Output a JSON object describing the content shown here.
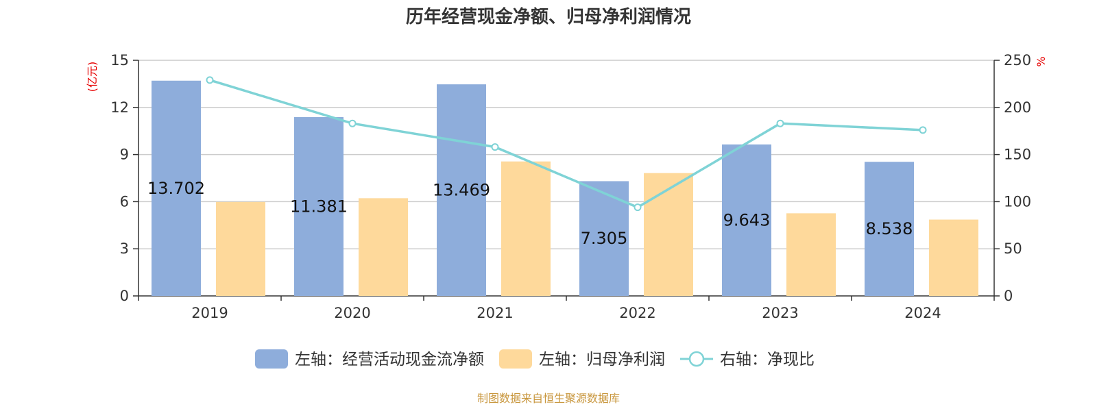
{
  "title": "历年经营现金净额、归母净利润情况",
  "source": "制图数据来自恒生聚源数据库",
  "colors": {
    "bar_cash": "#8eaddb",
    "bar_profit": "#fed99b",
    "line": "#7fd3d6",
    "unit_text": "#e60000",
    "source_text": "#c8963c"
  },
  "chart_data": {
    "type": "bar",
    "categories": [
      "2019",
      "2020",
      "2021",
      "2022",
      "2023",
      "2024"
    ],
    "left_axis": {
      "unit": "(亿元)",
      "ylim": [
        0,
        15
      ],
      "ticks": [
        0,
        3,
        6,
        9,
        12,
        15
      ]
    },
    "right_axis": {
      "unit": "%",
      "ylim": [
        0,
        250
      ],
      "ticks": [
        0,
        50,
        100,
        150,
        200,
        250
      ]
    },
    "series": [
      {
        "name": "左轴：经营活动现金流净额",
        "type": "bar",
        "axis": "left",
        "values": [
          13.702,
          11.381,
          13.469,
          7.305,
          9.643,
          8.538
        ],
        "labels": [
          "13.702",
          "11.381",
          "13.469",
          "7.305",
          "9.643",
          "8.538"
        ]
      },
      {
        "name": "左轴：归母净利润",
        "type": "bar",
        "axis": "left",
        "values": [
          5.98,
          6.22,
          8.56,
          7.82,
          5.26,
          4.86
        ]
      },
      {
        "name": "右轴：净现比",
        "type": "line",
        "axis": "right",
        "values": [
          229,
          183,
          158,
          94,
          183,
          176
        ]
      }
    ],
    "grid": true,
    "legend_position": "bottom"
  }
}
